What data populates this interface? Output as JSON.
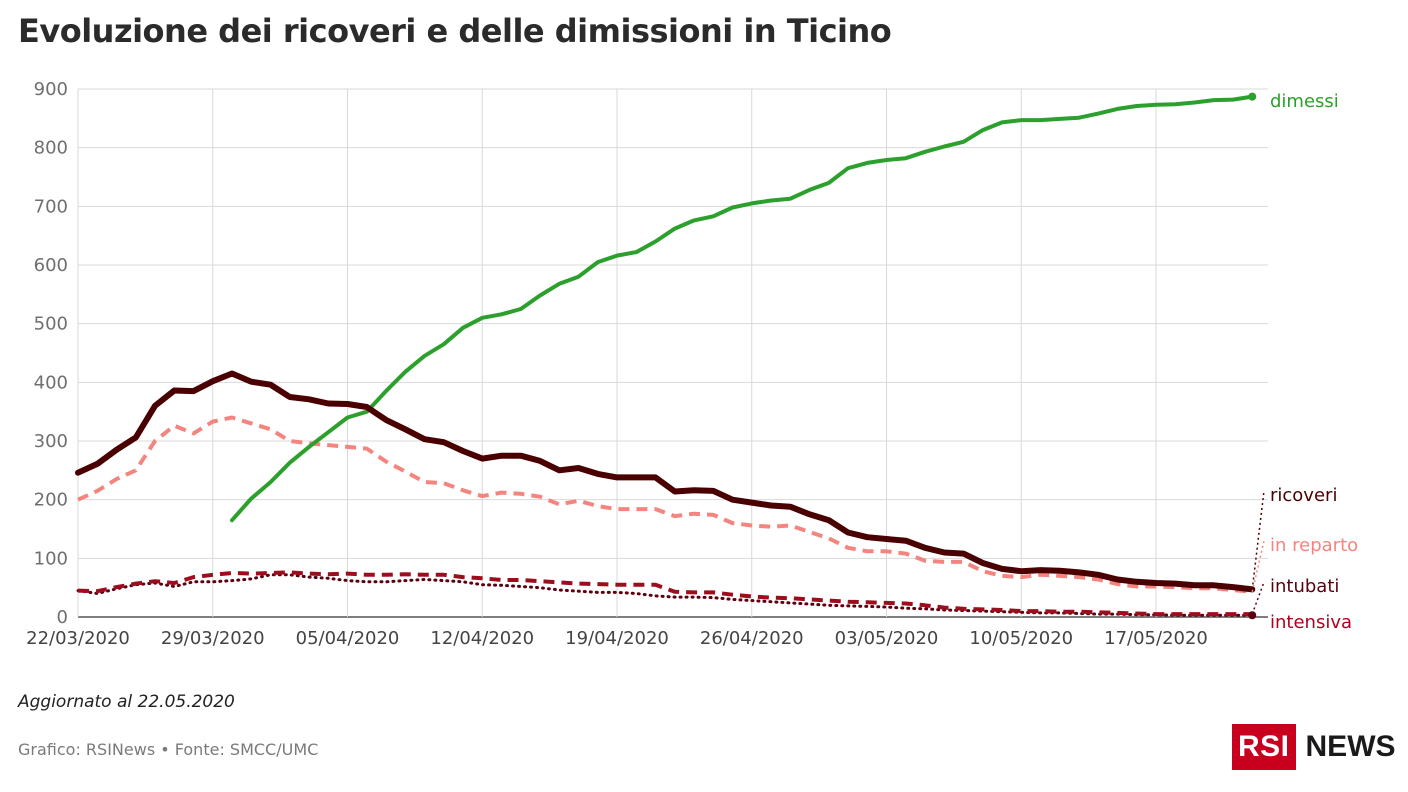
{
  "title": "Evoluzione dei ricoveri e delle dimissioni in Ticino",
  "updated": "Aggiornato al 22.05.2020",
  "credit": "Grafico: RSINews • Fonte: SMCC/UMC",
  "logo": {
    "box": "RSI",
    "text": "NEWS"
  },
  "chart_data": {
    "type": "line",
    "x_start": "22/03/2020",
    "x_end": "22/05/2020",
    "x_tick_labels": [
      "22/03/2020",
      "29/03/2020",
      "05/04/2020",
      "12/04/2020",
      "19/04/2020",
      "26/04/2020",
      "03/05/2020",
      "10/05/2020",
      "17/05/2020"
    ],
    "y_ticks": [
      0,
      100,
      200,
      300,
      400,
      500,
      600,
      700,
      800,
      900
    ],
    "ylim": [
      0,
      900
    ],
    "grid": true,
    "series": [
      {
        "name": "dimessi",
        "color": "#2ca02c",
        "style": "solid",
        "width": 4,
        "start_date": "30/03/2020",
        "values": [
          165,
          202,
          230,
          263,
          290,
          315,
          340,
          350,
          385,
          418,
          445,
          465,
          493,
          510,
          516,
          525,
          548,
          568,
          580,
          605,
          616,
          622,
          640,
          662,
          676,
          683,
          698,
          705,
          710,
          713,
          728,
          740,
          765,
          774,
          779,
          782,
          793,
          802,
          810,
          830,
          843,
          847,
          847,
          849,
          851,
          858,
          866,
          871,
          873,
          874,
          877,
          881,
          882,
          887
        ]
      },
      {
        "name": "ricoveri",
        "color": "#4a0000",
        "style": "solid",
        "width": 6,
        "start_date": "22/03/2020",
        "values": [
          246,
          261,
          285,
          306,
          360,
          386,
          385,
          402,
          415,
          401,
          396,
          375,
          371,
          364,
          363,
          358,
          336,
          320,
          303,
          298,
          283,
          270,
          275,
          275,
          266,
          250,
          254,
          244,
          238,
          238,
          238,
          214,
          216,
          215,
          200,
          195,
          190,
          188,
          175,
          165,
          144,
          136,
          133,
          130,
          118,
          110,
          108,
          92,
          82,
          78,
          80,
          79,
          76,
          72,
          64,
          60,
          58,
          57,
          54,
          54,
          51,
          47
        ]
      },
      {
        "name": "in reparto",
        "color": "#f4847e",
        "style": "dash",
        "width": 4,
        "start_date": "22/03/2020",
        "values": [
          200,
          215,
          235,
          250,
          300,
          326,
          313,
          333,
          340,
          330,
          320,
          300,
          296,
          293,
          290,
          287,
          265,
          248,
          230,
          228,
          216,
          206,
          212,
          210,
          205,
          192,
          198,
          189,
          184,
          184,
          184,
          172,
          176,
          174,
          160,
          156,
          154,
          156,
          145,
          134,
          118,
          112,
          112,
          108,
          96,
          94,
          94,
          78,
          70,
          68,
          72,
          70,
          68,
          64,
          56,
          52,
          52,
          51,
          49,
          49,
          46,
          43
        ]
      },
      {
        "name": "intubati",
        "color": "#9c0e1e",
        "style": "dash",
        "width": 4,
        "start_date": "22/03/2020",
        "values": [
          45,
          44,
          51,
          57,
          61,
          58,
          68,
          72,
          75,
          74,
          75,
          76,
          74,
          73,
          74,
          72,
          72,
          73,
          72,
          72,
          68,
          66,
          63,
          63,
          61,
          59,
          57,
          56,
          55,
          55,
          55,
          43,
          42,
          42,
          38,
          35,
          33,
          32,
          30,
          28,
          26,
          25,
          24,
          23,
          20,
          16,
          14,
          13,
          12,
          10,
          10,
          9,
          9,
          8,
          7,
          6,
          5,
          5,
          5,
          5,
          5,
          5
        ]
      },
      {
        "name": "intensiva",
        "color": "#5a0010",
        "style": "dot",
        "width": 3,
        "start_date": "22/03/2020",
        "values": [
          45,
          40,
          48,
          55,
          58,
          52,
          60,
          60,
          62,
          65,
          72,
          72,
          68,
          66,
          62,
          60,
          60,
          62,
          64,
          62,
          60,
          55,
          54,
          52,
          50,
          46,
          44,
          42,
          42,
          40,
          36,
          34,
          34,
          33,
          30,
          28,
          26,
          24,
          22,
          20,
          19,
          18,
          17,
          15,
          14,
          12,
          11,
          10,
          9,
          8,
          7,
          7,
          6,
          5,
          5,
          4,
          4,
          3,
          3,
          3,
          3,
          3
        ]
      }
    ]
  }
}
